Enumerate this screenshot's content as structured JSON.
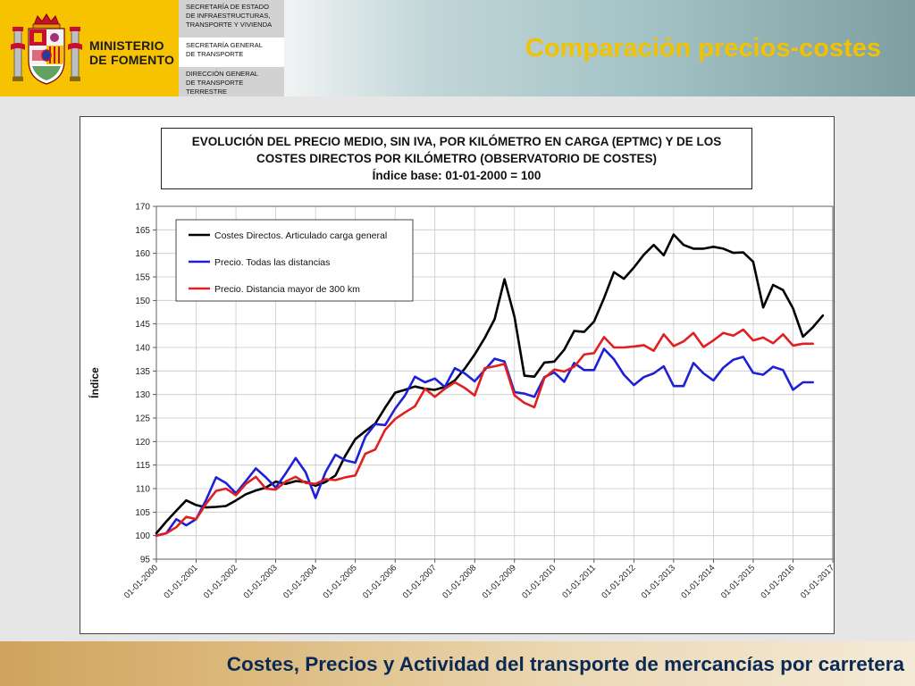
{
  "header": {
    "ministry_line1": "MINISTERIO",
    "ministry_line2": "DE FOMENTO",
    "org1": [
      "SECRETARÍA DE ESTADO",
      "DE INFRAESTRUCTURAS,",
      "TRANSPORTE Y VIVIENDA"
    ],
    "org2": [
      "SECRETARÍA GENERAL",
      "DE TRANSPORTE"
    ],
    "org3": [
      "DIRECCIÓN GENERAL",
      "DE TRANSPORTE",
      "TERRESTRE"
    ],
    "slide_title": "Comparación precios-costes",
    "crest_icon": "coat-of-arms-icon"
  },
  "footer": {
    "text": "Costes, Precios y Actividad del transporte de mercancías por carretera"
  },
  "colors": {
    "title_yellow": "#f2c200",
    "footer_text": "#0a2a55",
    "series_black": "#000000",
    "series_blue": "#1f1fd6",
    "series_red": "#e02020"
  },
  "chart_data": {
    "type": "line",
    "title_lines": [
      "EVOLUCIÓN DEL PRECIO MEDIO, SIN IVA, POR KILÓMETRO EN CARGA (EPTMC) Y DE LOS",
      "COSTES DIRECTOS POR KILÓMETRO (OBSERVATORIO DE COSTES)",
      "Índice base: 01-01-2000 = 100"
    ],
    "ylabel": "Índice",
    "xlabel": "",
    "ylim": [
      95,
      170
    ],
    "yticks": [
      95,
      100,
      105,
      110,
      115,
      120,
      125,
      130,
      135,
      140,
      145,
      150,
      155,
      160,
      165,
      170
    ],
    "xlim": [
      2000,
      2017
    ],
    "xtick_labels": [
      "01-01-2000",
      "01-01-2001",
      "01-01-2002",
      "01-01-2003",
      "01-01-2004",
      "01-01-2005",
      "01-01-2006",
      "01-01-2007",
      "01-01-2008",
      "01-01-2009",
      "01-01-2010",
      "01-01-2011",
      "01-01-2012",
      "01-01-2013",
      "01-01-2014",
      "01-01-2015",
      "01-01-2016",
      "01-01-2017"
    ],
    "grid": true,
    "legend_position": "top-left",
    "series": [
      {
        "name": "Costes Directos. Articulado carga general",
        "color": "#000000",
        "x": [
          2000.0,
          2000.25,
          2000.5,
          2000.75,
          2001.0,
          2001.25,
          2001.5,
          2001.75,
          2002.0,
          2002.25,
          2002.5,
          2002.75,
          2003.0,
          2003.25,
          2003.5,
          2003.75,
          2004.0,
          2004.25,
          2004.5,
          2004.75,
          2005.0,
          2005.25,
          2005.5,
          2005.75,
          2006.0,
          2006.25,
          2006.5,
          2006.75,
          2007.0,
          2007.25,
          2007.5,
          2007.75,
          2008.0,
          2008.25,
          2008.5,
          2008.75,
          2009.0,
          2009.25,
          2009.5,
          2009.75,
          2010.0,
          2010.25,
          2010.5,
          2010.75,
          2011.0,
          2011.25,
          2011.5,
          2011.75,
          2012.0,
          2012.25,
          2012.5,
          2012.75,
          2013.0,
          2013.25,
          2013.5,
          2013.75,
          2014.0,
          2014.25,
          2014.5,
          2014.75,
          2015.0,
          2015.25,
          2015.5,
          2015.75,
          2016.0,
          2016.25,
          2016.5,
          2016.75
        ],
        "values": [
          100.5,
          103.0,
          105.3,
          107.5,
          106.5,
          106.0,
          106.1,
          106.3,
          107.5,
          108.8,
          109.6,
          110.2,
          111.5,
          111.0,
          111.6,
          111.4,
          110.6,
          111.4,
          112.8,
          117.0,
          120.5,
          122.2,
          123.8,
          127.2,
          130.4,
          131.0,
          131.7,
          131.2,
          131.0,
          131.6,
          133.0,
          135.5,
          138.5,
          142.0,
          146.0,
          154.5,
          146.5,
          134.0,
          133.8,
          136.8,
          137.0,
          139.5,
          143.5,
          143.3,
          145.5,
          150.5,
          156.0,
          154.6,
          157.0,
          159.7,
          161.8,
          159.6,
          164.0,
          161.8,
          161.0,
          161.0,
          161.4,
          161.0,
          160.1,
          160.2,
          158.2,
          148.5,
          153.3,
          152.2,
          148.3,
          142.3,
          144.3,
          146.8
        ]
      },
      {
        "name": "Precio. Todas las distancias",
        "color": "#1f1fd6",
        "x": [
          2000.0,
          2000.25,
          2000.5,
          2000.75,
          2001.0,
          2001.25,
          2001.5,
          2001.75,
          2002.0,
          2002.25,
          2002.5,
          2002.75,
          2003.0,
          2003.25,
          2003.5,
          2003.75,
          2004.0,
          2004.25,
          2004.5,
          2004.75,
          2005.0,
          2005.25,
          2005.5,
          2005.75,
          2006.0,
          2006.25,
          2006.5,
          2006.75,
          2007.0,
          2007.25,
          2007.5,
          2007.75,
          2008.0,
          2008.25,
          2008.5,
          2008.75,
          2009.0,
          2009.25,
          2009.5,
          2009.75,
          2010.0,
          2010.25,
          2010.5,
          2010.75,
          2011.0,
          2011.25,
          2011.5,
          2011.75,
          2012.0,
          2012.25,
          2012.5,
          2012.75,
          2013.0,
          2013.25,
          2013.5,
          2013.75,
          2014.0,
          2014.25,
          2014.5,
          2014.75,
          2015.0,
          2015.25,
          2015.5,
          2015.75,
          2016.0,
          2016.25,
          2016.5
        ],
        "values": [
          100.0,
          100.5,
          103.5,
          102.2,
          103.5,
          107.6,
          112.4,
          111.2,
          109.0,
          111.6,
          114.3,
          112.4,
          110.2,
          113.2,
          116.5,
          113.5,
          108.0,
          113.5,
          117.2,
          116.0,
          115.5,
          121.0,
          123.7,
          123.5,
          127.0,
          129.8,
          133.8,
          132.6,
          133.4,
          131.6,
          135.6,
          134.5,
          132.8,
          135.2,
          137.6,
          137.0,
          130.5,
          130.2,
          129.5,
          133.7,
          134.7,
          132.7,
          136.7,
          135.2,
          135.2,
          139.7,
          137.5,
          134.2,
          132.0,
          133.7,
          134.5,
          136.0,
          131.8,
          131.8,
          136.7,
          134.5,
          133.0,
          135.7,
          137.4,
          138.0,
          134.6,
          134.2,
          135.9,
          135.2,
          131.0,
          132.6,
          132.6
        ]
      },
      {
        "name": "Precio. Distancia mayor de 300 km",
        "color": "#e02020",
        "x": [
          2000.0,
          2000.25,
          2000.5,
          2000.75,
          2001.0,
          2001.25,
          2001.5,
          2001.75,
          2002.0,
          2002.25,
          2002.5,
          2002.75,
          2003.0,
          2003.25,
          2003.5,
          2003.75,
          2004.0,
          2004.25,
          2004.5,
          2004.75,
          2005.0,
          2005.25,
          2005.5,
          2005.75,
          2006.0,
          2006.25,
          2006.5,
          2006.75,
          2007.0,
          2007.25,
          2007.5,
          2007.75,
          2008.0,
          2008.25,
          2008.5,
          2008.75,
          2009.0,
          2009.25,
          2009.5,
          2009.75,
          2010.0,
          2010.25,
          2010.5,
          2010.75,
          2011.0,
          2011.25,
          2011.5,
          2011.75,
          2012.0,
          2012.25,
          2012.5,
          2012.75,
          2013.0,
          2013.25,
          2013.5,
          2013.75,
          2014.0,
          2014.25,
          2014.5,
          2014.75,
          2015.0,
          2015.25,
          2015.5,
          2015.75,
          2016.0,
          2016.25,
          2016.5
        ],
        "values": [
          100.0,
          100.5,
          101.8,
          104.0,
          103.5,
          106.8,
          109.5,
          110.0,
          108.6,
          111.0,
          112.5,
          110.0,
          109.8,
          111.5,
          112.5,
          111.2,
          111.0,
          112.0,
          111.8,
          112.4,
          112.8,
          117.4,
          118.3,
          122.5,
          124.8,
          126.2,
          127.5,
          131.2,
          129.5,
          131.2,
          132.6,
          131.4,
          129.8,
          135.6,
          136.0,
          136.5,
          129.8,
          128.2,
          127.3,
          133.5,
          135.3,
          134.9,
          135.9,
          138.5,
          138.8,
          142.2,
          140.0,
          140.0,
          140.2,
          140.5,
          139.3,
          142.8,
          140.3,
          141.3,
          143.1,
          140.1,
          141.5,
          143.1,
          142.5,
          143.8,
          141.5,
          142.1,
          140.9,
          142.8,
          140.4,
          140.8,
          140.8
        ]
      }
    ]
  }
}
